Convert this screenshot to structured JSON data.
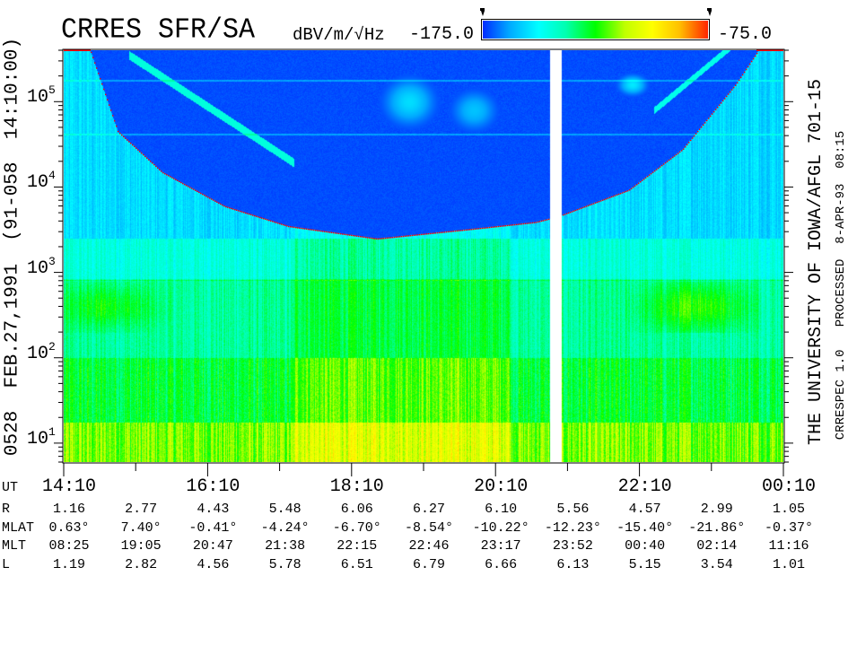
{
  "header": {
    "title": "CRRES SFR/SA",
    "units": "dBV/m/√Hz",
    "colorbar_min": "-175.0",
    "colorbar_max": "-75.0"
  },
  "left_label": "0528  FEB.27,1991  (91-058  14:10:00)",
  "right_label": "THE UNIVERSITY OF IOWA/AFGL 701-15",
  "right_sublabel": "CRRESPEC 1.0   PROCESSED  8-APR-93  08:15",
  "chart_data": {
    "type": "heatmap",
    "title": "CRRES SFR/SA",
    "x_axis": {
      "label": "UT",
      "range": [
        "14:10",
        "00:10"
      ],
      "tick_labels": [
        "14:10",
        "16:10",
        "18:10",
        "20:10",
        "22:10",
        "00:10"
      ],
      "tick_interval_hours": 1
    },
    "y_axis": {
      "scale": "log",
      "unit": "Hz",
      "range": [
        6,
        400000
      ],
      "tick_labels": [
        {
          "base": "10",
          "exp": "5"
        },
        {
          "base": "10",
          "exp": "4"
        },
        {
          "base": "10",
          "exp": "3"
        },
        {
          "base": "10",
          "exp": "2"
        },
        {
          "base": "10",
          "exp": "1"
        }
      ]
    },
    "color_scale": {
      "unit": "dBV/m/√Hz",
      "min": -175.0,
      "max": -75.0,
      "colors": [
        "#0028ff",
        "#00a8ff",
        "#00ffff",
        "#00ff00",
        "#ffff00",
        "#ff2000"
      ]
    },
    "data_gap": [
      "20:55",
      "21:05"
    ],
    "fce_curve": {
      "color": "#ff0000",
      "style": "dotted",
      "points": [
        [
          "14:32",
          400000
        ],
        [
          "14:55",
          45000
        ],
        [
          "15:32",
          15000
        ],
        [
          "16:24",
          6000
        ],
        [
          "17:17",
          3500
        ],
        [
          "18:31",
          2500
        ],
        [
          "19:46",
          3200
        ],
        [
          "20:43",
          3900
        ],
        [
          "21:01",
          4500
        ],
        [
          "22:01",
          9300
        ],
        [
          "22:46",
          28000
        ],
        [
          "23:30",
          160000
        ],
        [
          "23:49",
          400000
        ]
      ]
    }
  },
  "ephemeris": {
    "rows": [
      {
        "label": "R",
        "values": [
          "1.16",
          "2.77",
          "4.43",
          "5.48",
          "6.06",
          "6.27",
          "6.10",
          "5.56",
          "4.57",
          "2.99",
          "1.05"
        ]
      },
      {
        "label": "MLAT",
        "values": [
          "0.63°",
          "7.40°",
          "-0.41°",
          "-4.24°",
          "-6.70°",
          "-8.54°",
          "-10.22°",
          "-12.23°",
          "-15.40°",
          "-21.86°",
          "-0.37°"
        ]
      },
      {
        "label": "MLT",
        "values": [
          "08:25",
          "19:05",
          "20:47",
          "21:38",
          "22:15",
          "22:46",
          "23:17",
          "23:52",
          "00:40",
          "02:14",
          "11:16"
        ]
      },
      {
        "label": "L",
        "values": [
          "1.19",
          "2.82",
          "4.56",
          "5.78",
          "6.51",
          "6.79",
          "6.66",
          "6.13",
          "5.15",
          "3.54",
          "1.01"
        ]
      }
    ]
  }
}
